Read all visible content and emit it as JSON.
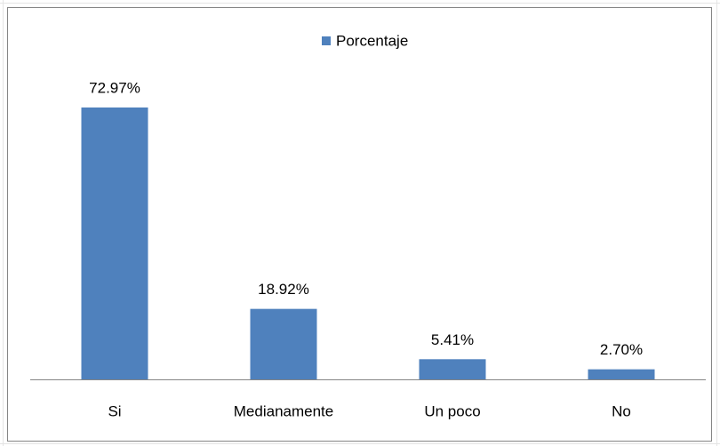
{
  "chart_data": {
    "type": "bar",
    "categories": [
      "Si",
      "Medianamente",
      "Un poco",
      "No"
    ],
    "values": [
      72.97,
      18.92,
      5.41,
      2.7
    ],
    "value_labels": [
      "72.97%",
      "18.92%",
      "5.41%",
      "2.70%"
    ],
    "color": "#4f81bd",
    "legend": {
      "name": "Porcentaje",
      "position": "top"
    }
  }
}
